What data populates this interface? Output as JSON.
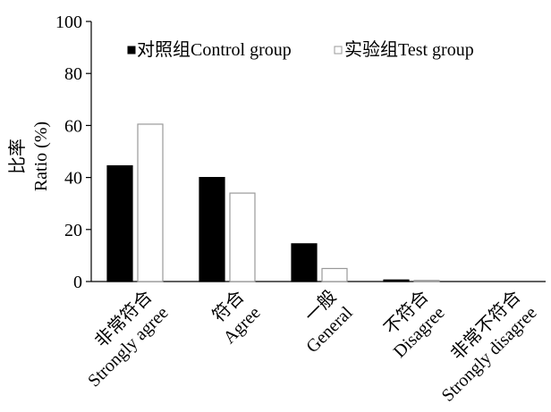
{
  "chart_data": {
    "type": "bar",
    "categories": [
      {
        "zh": "非常符合",
        "en": "Strongly agree"
      },
      {
        "zh": "符合",
        "en": "Agree"
      },
      {
        "zh": "一般",
        "en": "General"
      },
      {
        "zh": "不符合",
        "en": "Disagree"
      },
      {
        "zh": "非常不符合",
        "en": "Strongly disagree"
      }
    ],
    "series": [
      {
        "name": "对照组Control group",
        "values": [
          44.5,
          40.0,
          14.5,
          0.6,
          0.0
        ],
        "fill": "#000000",
        "stroke": "#000000"
      },
      {
        "name": "实验组Test group",
        "values": [
          60.5,
          34.0,
          5.0,
          0.4,
          0.0
        ],
        "fill": "#ffffff",
        "stroke": "#999999"
      }
    ],
    "ylabel_zh": "比率",
    "ylabel_en": "Ratio (%)",
    "ylim": [
      0,
      100
    ],
    "yticks": [
      0,
      20,
      40,
      60,
      80,
      100
    ],
    "legend_position": "top"
  }
}
